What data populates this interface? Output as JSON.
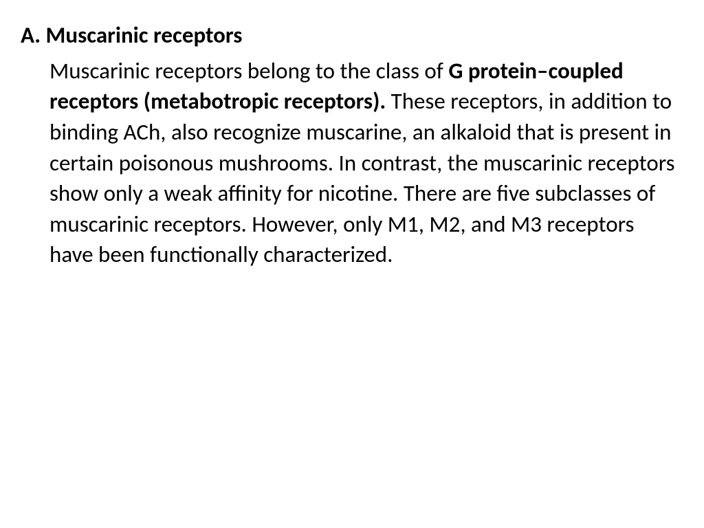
{
  "heading": "A. Muscarinic receptors",
  "body": {
    "part1": "Muscarinic receptors belong to the class of ",
    "bold1": "G protein–coupled receptors (metabotropic receptors).",
    "part2": " These receptors, in addition to binding ACh, also recognize muscarine, an alkaloid that is present in certain poisonous mushrooms. In contrast, the muscarinic receptors show only a weak affinity for nicotine. There are five subclasses of muscarinic receptors. However, only M1, M2, and M3 receptors have been functionally characterized."
  },
  "colors": {
    "background": "#ffffff",
    "text": "#000000"
  },
  "typography": {
    "font_family": "Calibri",
    "heading_fontsize": 33,
    "body_fontsize": 33,
    "heading_weight": "bold",
    "line_height": 1.35
  }
}
